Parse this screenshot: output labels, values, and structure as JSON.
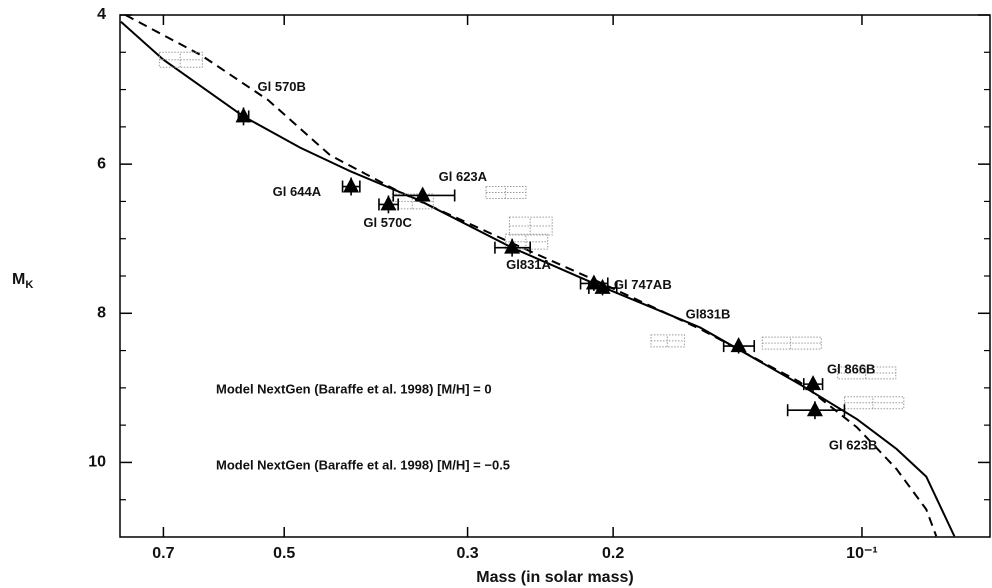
{
  "chart_data": {
    "type": "scatter",
    "xlabel": "Mass (in solar mass)",
    "ylabel": "M",
    "ylabel_sub": "K",
    "xscale": "log",
    "xlim": [
      0.79,
      0.07
    ],
    "ylim": [
      11,
      4
    ],
    "xticks": [
      0.7,
      0.5,
      0.3,
      0.2,
      {
        "value": 0.1,
        "label": "10⁻¹"
      }
    ],
    "yticks": [
      4,
      6,
      8,
      10
    ],
    "yticks_minor": [
      4.5,
      5,
      5.5,
      6.5,
      7,
      7.5,
      8.5,
      9,
      9.5,
      10.5
    ],
    "series": [
      {
        "name": "Model NextGen (Baraffe et al. 1998) [M/H] = 0",
        "mark": "line",
        "style": "solid",
        "color": "#000000",
        "x": [
          0.788,
          0.7,
          0.56,
          0.478,
          0.415,
          0.344,
          0.265,
          0.21,
          0.157,
          0.119,
          0.1014,
          0.0908,
          0.0836,
          0.0773
        ],
        "values": [
          4.09,
          4.6,
          5.36,
          5.78,
          6.1,
          6.48,
          7.12,
          7.61,
          8.19,
          8.95,
          9.42,
          9.82,
          10.19,
          10.99
        ]
      },
      {
        "name": "Model NextGen (Baraffe et al. 1998) [M/H] = −0.5",
        "mark": "line",
        "style": "dashed",
        "color": "#000000",
        "x": [
          0.778,
          0.63,
          0.523,
          0.44,
          0.363,
          0.265,
          0.21,
          0.157,
          0.119,
          0.1014,
          0.0908,
          0.0836,
          0.0813
        ],
        "values": [
          4.0,
          4.54,
          5.14,
          5.88,
          6.37,
          7.06,
          7.56,
          8.21,
          8.92,
          9.53,
          10.09,
          10.63,
          10.99
        ]
      },
      {
        "mark": "box",
        "color": "#9a9a9a",
        "x": [
          0.668,
          0.27,
          0.252,
          0.255,
          0.35,
          0.172,
          0.122,
          0.099,
          0.097
        ],
        "values": [
          4.6,
          6.38,
          6.83,
          7.04,
          6.5,
          8.37,
          8.4,
          8.8,
          9.2
        ],
        "x_err": [
          0.04,
          0.015,
          0.015,
          0.015,
          0.02,
          0.008,
          0.01,
          0.008,
          0.008
        ],
        "y_err": [
          0.1,
          0.08,
          0.12,
          0.1,
          0.1,
          0.08,
          0.08,
          0.08,
          0.08
        ]
      },
      {
        "mark": "triangle",
        "color": "#000000",
        "labels": [
          "Gl 570B",
          "Gl 644A",
          "Gl 570C",
          "Gl 623A",
          "Gl831A",
          "Gl 747AB",
          null,
          "Gl831B",
          "Gl 866B",
          "Gl 623B"
        ],
        "x": [
          0.56,
          0.415,
          0.374,
          0.34,
          0.265,
          0.211,
          0.206,
          0.141,
          0.1146,
          0.114
        ],
        "values": [
          5.36,
          6.3,
          6.54,
          6.42,
          7.12,
          7.6,
          7.66,
          8.44,
          8.95,
          9.3
        ],
        "x_err": [
          0.008,
          0.01,
          0.01,
          0.029,
          0.013,
          0.008,
          0.008,
          0.006,
          0.003,
          0.009
        ],
        "y_err": [
          0.12,
          0.12,
          0.12,
          0.08,
          0.12,
          0.1,
          0.1,
          0.1,
          0.1,
          0.12
        ]
      }
    ]
  }
}
